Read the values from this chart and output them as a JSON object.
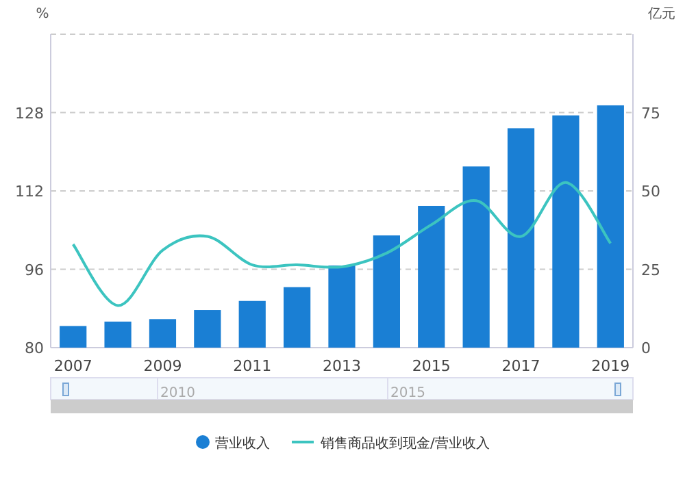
{
  "chart_data": {
    "type": "bar",
    "ylabel": "%",
    "y2label": "亿元",
    "categories": [
      "2007",
      null,
      "2009",
      null,
      "2011",
      null,
      "2013",
      null,
      "2015",
      null,
      "2017",
      null,
      "2019"
    ],
    "series": [
      {
        "name": "营业收入",
        "axis": "y2",
        "color": "#1a7fd4",
        "values": [
          6.9,
          8.3,
          9.1,
          12.0,
          14.9,
          19.3,
          26.2,
          35.8,
          45.2,
          57.8,
          70.0,
          74.1,
          77.3
        ]
      },
      {
        "name": "销售商品收到现金/营业收入",
        "type": "line",
        "color": "#3cc4c0",
        "values": [
          101.1,
          88.6,
          99.9,
          102.7,
          96.9,
          96.9,
          96.5,
          99.3,
          105.1,
          110.0,
          102.7,
          113.7,
          101.3
        ]
      }
    ],
    "ylim": [
      80,
      144
    ],
    "yticks": [
      80,
      96,
      112,
      128
    ],
    "y2lim": [
      0,
      100
    ],
    "y2ticks": [
      0,
      25,
      50,
      75
    ],
    "grid": "y",
    "legend": "bottom",
    "annotations": [
      "2010",
      "2015"
    ]
  }
}
